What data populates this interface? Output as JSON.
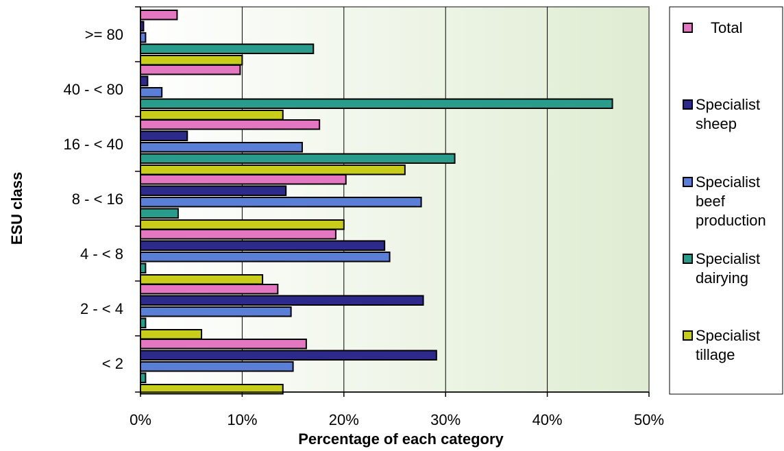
{
  "chart_data": {
    "type": "bar",
    "orientation": "horizontal",
    "categories": [
      ">= 80",
      "40 - < 80",
      "16 - < 40",
      "8 - < 16",
      "4 - < 8",
      "2 - < 4",
      "< 2"
    ],
    "xlabel": "Percentage of each category",
    "ylabel": "ESU class",
    "xlim": [
      0,
      50
    ],
    "xticks": [
      "0%",
      "10%",
      "20%",
      "30%",
      "40%",
      "50%"
    ],
    "grid": true,
    "legend_position": "right",
    "series": [
      {
        "name": "Total",
        "legend_lines": [
          "Total"
        ],
        "color": "#e377c2",
        "values": [
          3.6,
          9.8,
          17.6,
          20.2,
          19.2,
          13.5,
          16.3
        ]
      },
      {
        "name": "Specialist sheep",
        "legend_lines": [
          "Specialist",
          "sheep"
        ],
        "color": "#2e2a8c",
        "values": [
          0.3,
          0.7,
          4.6,
          14.3,
          24.0,
          27.8,
          29.1
        ]
      },
      {
        "name": "Specialist beef production",
        "legend_lines": [
          "Specialist",
          "beef",
          "production"
        ],
        "color": "#5b7fd6",
        "values": [
          0.5,
          2.1,
          15.9,
          27.6,
          24.5,
          14.8,
          15.0
        ]
      },
      {
        "name": "Specialist dairying",
        "legend_lines": [
          "Specialist",
          "dairying"
        ],
        "color": "#2a9c8c",
        "values": [
          17.0,
          46.4,
          30.9,
          3.7,
          0.5,
          0.5,
          0.5
        ]
      },
      {
        "name": "Specialist tillage",
        "legend_lines": [
          "Specialist",
          "tillage"
        ],
        "color": "#c8cc1a",
        "values": [
          10.0,
          14.0,
          26.0,
          20.0,
          12.0,
          6.0,
          14.0
        ]
      }
    ]
  }
}
